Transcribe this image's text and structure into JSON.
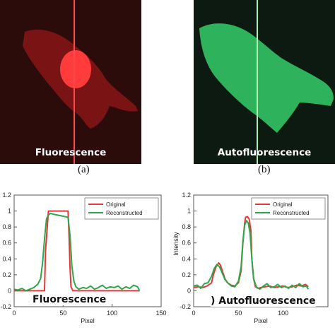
{
  "panel_a": {
    "image_label": "Fluorescence",
    "caption": "(a)",
    "image_colors": {
      "background": "#2c0b0b",
      "cell": "#7a1414",
      "nucleus": "#ff3b3b",
      "line": "#ff4a4a"
    }
  },
  "panel_b": {
    "image_label": "Autofluorescence",
    "caption": "(b)",
    "image_colors": {
      "background": "#0d1a12",
      "cell": "#2fb25c",
      "line": "#a8f0b2"
    }
  },
  "chart_data": [
    {
      "type": "line",
      "annotation": "Fluorescence",
      "xlabel": "Pixel",
      "ylabel": "",
      "xlim": [
        0,
        150
      ],
      "ylim": [
        -0.2,
        1.2
      ],
      "xticks": [
        0,
        50,
        100,
        150
      ],
      "yticks": [
        -0.2,
        0,
        0.2,
        0.4,
        0.6,
        0.8,
        1,
        1.2
      ],
      "legend_position": "top-right",
      "series": [
        {
          "name": "Original",
          "color": "#e83535",
          "x": [
            0,
            5,
            10,
            15,
            20,
            25,
            28,
            30,
            31,
            32,
            35,
            40,
            45,
            50,
            52,
            55,
            56,
            57,
            58,
            60,
            65,
            70,
            75,
            80,
            85,
            90,
            95,
            100,
            105,
            110,
            115,
            120,
            125,
            128
          ],
          "y": [
            0,
            0,
            0,
            0,
            0,
            0,
            0,
            0,
            0,
            0.5,
            1,
            1,
            1,
            1,
            1,
            1,
            0.7,
            0.3,
            0.05,
            0,
            0,
            0,
            0,
            0,
            0,
            0,
            0,
            0,
            0,
            0,
            0,
            0,
            0,
            0
          ]
        },
        {
          "name": "Reconstructed",
          "color": "#2aa84a",
          "x": [
            0,
            4,
            8,
            12,
            16,
            20,
            24,
            27,
            29,
            31,
            33,
            35,
            37,
            40,
            44,
            48,
            52,
            55,
            57,
            59,
            61,
            63,
            66,
            70,
            74,
            78,
            82,
            86,
            90,
            94,
            98,
            102,
            106,
            110,
            114,
            118,
            122,
            126,
            128
          ],
          "y": [
            0.02,
            0.01,
            0.03,
            0.0,
            0.02,
            0.04,
            0.08,
            0.15,
            0.35,
            0.65,
            0.9,
            0.95,
            0.97,
            0.96,
            0.95,
            0.94,
            0.93,
            0.92,
            0.7,
            0.3,
            0.12,
            0.05,
            0.02,
            0.04,
            0.03,
            0.06,
            0.02,
            0.04,
            0.07,
            0.03,
            0.05,
            0.04,
            0.06,
            0.02,
            0.05,
            0.03,
            0.07,
            0.05,
            0.0
          ]
        }
      ]
    },
    {
      "type": "line",
      "annotation": ") Autofluorescence",
      "xlabel": "Pixel",
      "ylabel": "Intensity",
      "xlim": [
        0,
        150
      ],
      "ylim": [
        -0.2,
        1.2
      ],
      "xticks": [
        0,
        50,
        100
      ],
      "yticks": [
        -0.2,
        0,
        0.2,
        0.4,
        0.6,
        0.8,
        1,
        1.2
      ],
      "legend_position": "top-right",
      "series": [
        {
          "name": "Original",
          "color": "#e83535",
          "x": [
            0,
            5,
            10,
            15,
            20,
            22,
            25,
            28,
            30,
            32,
            35,
            38,
            42,
            46,
            50,
            53,
            55,
            57,
            58,
            60,
            62,
            64,
            65,
            67,
            69,
            72,
            75,
            80,
            85,
            90,
            95,
            100,
            105,
            110,
            115,
            120,
            125,
            128
          ],
          "y": [
            0.04,
            0.05,
            0.04,
            0.06,
            0.1,
            0.2,
            0.3,
            0.35,
            0.32,
            0.25,
            0.15,
            0.1,
            0.07,
            0.06,
            0.1,
            0.25,
            0.6,
            0.85,
            0.92,
            0.93,
            0.9,
            0.75,
            0.4,
            0.15,
            0.05,
            0.03,
            0.04,
            0.05,
            0.06,
            0.04,
            0.05,
            0.06,
            0.04,
            0.05,
            0.07,
            0.06,
            0.08,
            0.05
          ]
        },
        {
          "name": "Reconstructed",
          "color": "#2aa84a",
          "x": [
            0,
            4,
            8,
            12,
            16,
            20,
            23,
            26,
            29,
            32,
            35,
            38,
            42,
            46,
            50,
            53,
            55,
            57,
            59,
            61,
            63,
            65,
            67,
            70,
            74,
            78,
            82,
            86,
            90,
            94,
            98,
            102,
            106,
            110,
            114,
            118,
            122,
            126,
            128
          ],
          "y": [
            0.06,
            0.07,
            0.03,
            0.09,
            0.1,
            0.18,
            0.28,
            0.33,
            0.3,
            0.22,
            0.14,
            0.1,
            0.06,
            0.05,
            0.12,
            0.3,
            0.62,
            0.82,
            0.88,
            0.85,
            0.72,
            0.4,
            0.15,
            0.05,
            0.02,
            0.06,
            0.09,
            0.04,
            0.05,
            0.08,
            0.04,
            0.06,
            0.03,
            0.07,
            0.04,
            0.09,
            0.05,
            0.06,
            0.02
          ]
        }
      ]
    }
  ]
}
